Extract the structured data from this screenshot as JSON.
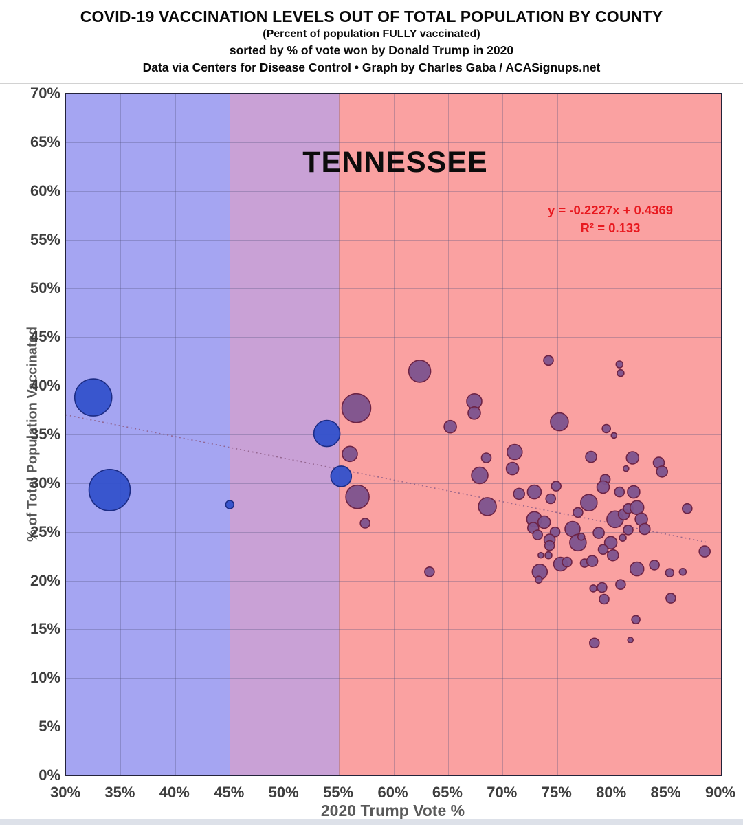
{
  "header": {
    "title": "COVID-19 VACCINATION LEVELS OUT OF TOTAL POPULATION BY COUNTY",
    "subtitle1": "(Percent of population FULLY vaccinated)",
    "subtitle2": "sorted by % of vote won by Donald Trump in 2020",
    "subtitle3": "Data via Centers for Disease Control • Graph by Charles Gaba / ACASignups.net"
  },
  "chart_data": {
    "type": "scatter",
    "title": "TENNESSEE",
    "xlabel": "2020 Trump Vote %",
    "ylabel": "% of Total Population Vaccinated",
    "xlim": [
      30,
      90
    ],
    "ylim": [
      0,
      70
    ],
    "x_ticks": [
      "30%",
      "35%",
      "40%",
      "45%",
      "50%",
      "55%",
      "60%",
      "65%",
      "70%",
      "75%",
      "80%",
      "85%",
      "90%"
    ],
    "y_ticks": [
      "0%",
      "5%",
      "10%",
      "15%",
      "20%",
      "25%",
      "30%",
      "35%",
      "40%",
      "45%",
      "50%",
      "55%",
      "60%",
      "65%",
      "70%"
    ],
    "grid": true,
    "annotations": {
      "state_label": "TENNESSEE",
      "equation": "y = -0.2227x + 0.4369",
      "r_squared": "R² = 0.133",
      "equation_color": "#e8191f"
    },
    "zones": [
      {
        "name": "biden-zone",
        "x_start": 30,
        "x_end": 45,
        "color": "#a5a5f2"
      },
      {
        "name": "swing-zone",
        "x_start": 45,
        "x_end": 55,
        "color": "#c9a1d6"
      },
      {
        "name": "trump-zone",
        "x_start": 55,
        "x_end": 90,
        "color": "#faa1a1"
      }
    ],
    "trend_line": {
      "slope": -0.2227,
      "intercept": 0.4369,
      "x_start": 30,
      "x_end": 88.6,
      "style": "dotted",
      "color": "#8d5d86"
    },
    "point_colors": {
      "b": {
        "fill": "#3351cb",
        "stroke": "#1c2c85"
      },
      "p": {
        "fill": "#7c538e",
        "stroke": "#6d2345"
      }
    },
    "points_format": [
      "trump_vote_pct",
      "vaccinated_pct",
      "bubble_radius_px",
      "color_key"
    ],
    "points": [
      [
        32.5,
        38.8,
        27,
        "b"
      ],
      [
        34.0,
        29.3,
        30,
        "b"
      ],
      [
        45.0,
        27.8,
        6,
        "b"
      ],
      [
        53.9,
        35.1,
        19,
        "b"
      ],
      [
        55.2,
        30.7,
        15,
        "b"
      ],
      [
        56.6,
        37.7,
        21,
        "p"
      ],
      [
        56.0,
        33.0,
        11,
        "p"
      ],
      [
        56.7,
        28.6,
        17,
        "p"
      ],
      [
        57.4,
        25.9,
        7,
        "p"
      ],
      [
        62.4,
        41.5,
        16,
        "p"
      ],
      [
        63.3,
        20.9,
        7,
        "p"
      ],
      [
        65.2,
        35.8,
        9,
        "p"
      ],
      [
        67.4,
        38.4,
        11,
        "p"
      ],
      [
        67.4,
        37.2,
        9,
        "p"
      ],
      [
        67.9,
        30.8,
        12,
        "p"
      ],
      [
        68.5,
        32.6,
        7,
        "p"
      ],
      [
        68.6,
        27.6,
        13,
        "p"
      ],
      [
        70.9,
        31.5,
        9,
        "p"
      ],
      [
        71.1,
        33.2,
        11,
        "p"
      ],
      [
        71.5,
        28.9,
        8,
        "p"
      ],
      [
        72.9,
        29.1,
        10,
        "p"
      ],
      [
        74.4,
        28.4,
        7,
        "p"
      ],
      [
        74.9,
        29.7,
        7,
        "p"
      ],
      [
        74.2,
        42.6,
        7,
        "p"
      ],
      [
        75.2,
        36.3,
        13,
        "p"
      ],
      [
        72.9,
        26.3,
        11,
        "p"
      ],
      [
        73.8,
        26.0,
        9,
        "p"
      ],
      [
        72.8,
        25.4,
        8,
        "p"
      ],
      [
        73.2,
        24.7,
        7,
        "p"
      ],
      [
        74.8,
        25.0,
        7,
        "p"
      ],
      [
        76.4,
        25.3,
        11,
        "p"
      ],
      [
        74.3,
        24.2,
        8,
        "p"
      ],
      [
        74.3,
        23.6,
        7,
        "p"
      ],
      [
        76.9,
        23.9,
        12,
        "p"
      ],
      [
        77.2,
        24.5,
        5,
        "p"
      ],
      [
        73.5,
        22.6,
        4,
        "p"
      ],
      [
        74.2,
        22.6,
        5,
        "p"
      ],
      [
        75.3,
        21.7,
        10,
        "p"
      ],
      [
        75.9,
        21.9,
        7,
        "p"
      ],
      [
        77.5,
        21.8,
        6,
        "p"
      ],
      [
        78.2,
        22.0,
        8,
        "p"
      ],
      [
        73.4,
        20.9,
        11,
        "p"
      ],
      [
        73.3,
        20.1,
        5,
        "p"
      ],
      [
        77.9,
        28.0,
        12,
        "p"
      ],
      [
        76.9,
        27.0,
        7,
        "p"
      ],
      [
        78.1,
        32.7,
        8,
        "p"
      ],
      [
        79.5,
        35.6,
        6,
        "p"
      ],
      [
        80.2,
        34.9,
        4,
        "p"
      ],
      [
        79.4,
        30.4,
        7,
        "p"
      ],
      [
        79.2,
        29.6,
        9,
        "p"
      ],
      [
        80.7,
        29.1,
        7,
        "p"
      ],
      [
        82.0,
        29.1,
        9,
        "p"
      ],
      [
        80.3,
        26.3,
        12,
        "p"
      ],
      [
        81.1,
        26.8,
        8,
        "p"
      ],
      [
        81.5,
        27.4,
        7,
        "p"
      ],
      [
        82.3,
        27.5,
        10,
        "p"
      ],
      [
        82.7,
        26.3,
        9,
        "p"
      ],
      [
        83.0,
        25.3,
        8,
        "p"
      ],
      [
        81.5,
        25.2,
        7,
        "p"
      ],
      [
        81.0,
        24.4,
        5,
        "p"
      ],
      [
        78.8,
        24.9,
        8,
        "p"
      ],
      [
        79.9,
        23.9,
        9,
        "p"
      ],
      [
        79.2,
        23.2,
        7,
        "p"
      ],
      [
        80.1,
        22.6,
        8,
        "p"
      ],
      [
        82.3,
        21.2,
        10,
        "p"
      ],
      [
        83.9,
        21.6,
        7,
        "p"
      ],
      [
        85.3,
        20.8,
        6,
        "p"
      ],
      [
        86.5,
        20.9,
        5,
        "p"
      ],
      [
        78.3,
        19.2,
        5,
        "p"
      ],
      [
        79.1,
        19.3,
        7,
        "p"
      ],
      [
        80.8,
        19.6,
        7,
        "p"
      ],
      [
        79.3,
        18.1,
        7,
        "p"
      ],
      [
        85.4,
        18.2,
        7,
        "p"
      ],
      [
        82.2,
        16.0,
        6,
        "p"
      ],
      [
        78.4,
        13.6,
        7,
        "p"
      ],
      [
        81.7,
        13.9,
        4,
        "p"
      ],
      [
        81.9,
        32.6,
        9,
        "p"
      ],
      [
        81.3,
        31.5,
        4,
        "p"
      ],
      [
        84.3,
        32.1,
        8,
        "p"
      ],
      [
        84.6,
        31.2,
        8,
        "p"
      ],
      [
        86.9,
        27.4,
        7,
        "p"
      ],
      [
        88.5,
        23.0,
        8,
        "p"
      ],
      [
        80.7,
        42.2,
        5,
        "p"
      ],
      [
        80.8,
        41.3,
        5,
        "p"
      ]
    ]
  }
}
